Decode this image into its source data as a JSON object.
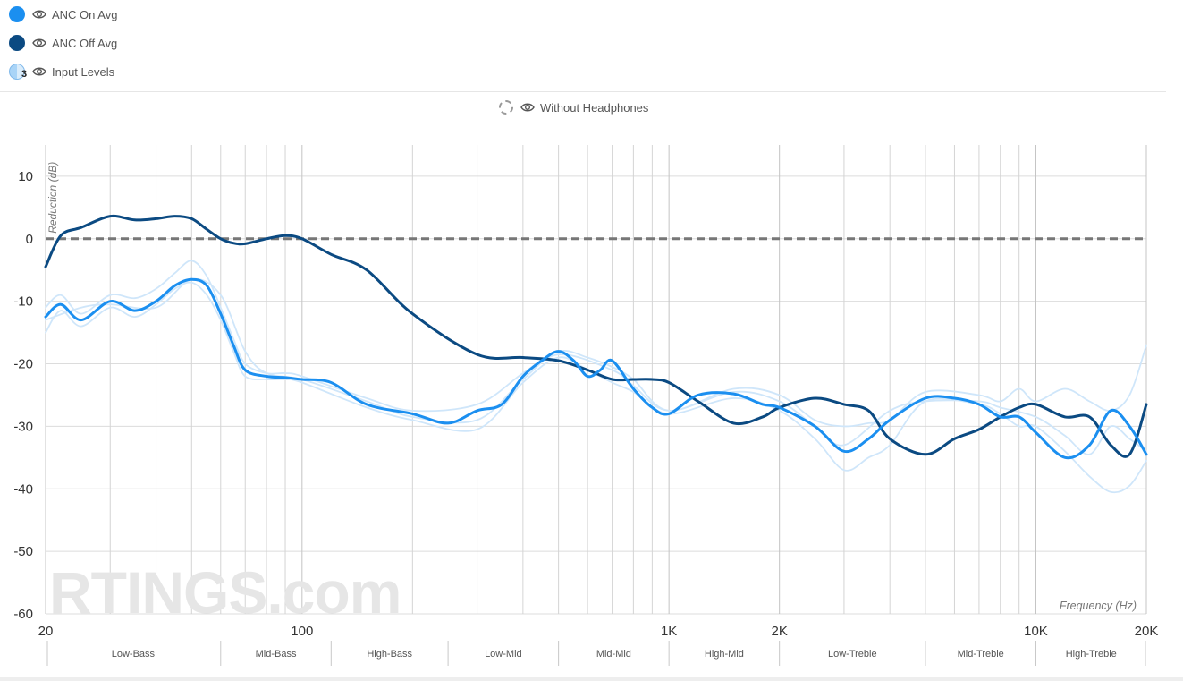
{
  "legend": {
    "items": [
      {
        "label": "ANC On Avg",
        "color": "#1b8ff0"
      },
      {
        "label": "ANC Off Avg",
        "color": "#0b4a82"
      },
      {
        "label": "Input Levels",
        "color": "#a9d4f7",
        "badge": "3"
      }
    ],
    "toggle_label": "Without Headphones"
  },
  "chart_data": {
    "type": "line",
    "title": "",
    "xlabel": "Frequency (Hz)",
    "ylabel": "Reduction (dB)",
    "x_scale": "log",
    "xlim": [
      20,
      20000
    ],
    "ylim": [
      -60,
      15
    ],
    "x_ticks": [
      {
        "value": 20,
        "label": "20"
      },
      {
        "value": 100,
        "label": "100"
      },
      {
        "value": 1000,
        "label": "1K"
      },
      {
        "value": 2000,
        "label": "2K"
      },
      {
        "value": 10000,
        "label": "10K"
      },
      {
        "value": 20000,
        "label": "20K"
      }
    ],
    "y_ticks": [
      10,
      0,
      -10,
      -20,
      -30,
      -40,
      -50,
      -60
    ],
    "minor_x_gridlines": [
      30,
      40,
      50,
      60,
      70,
      80,
      90,
      200,
      300,
      400,
      500,
      600,
      700,
      800,
      900,
      3000,
      4000,
      5000,
      6000,
      7000,
      8000,
      9000
    ],
    "reference_line": {
      "name": "Without Headphones",
      "y": 0
    },
    "bands": [
      {
        "label": "Low-Bass",
        "from": 20,
        "to": 60
      },
      {
        "label": "Mid-Bass",
        "from": 60,
        "to": 120
      },
      {
        "label": "High-Bass",
        "from": 120,
        "to": 250
      },
      {
        "label": "Low-Mid",
        "from": 250,
        "to": 500
      },
      {
        "label": "Mid-Mid",
        "from": 500,
        "to": 1000
      },
      {
        "label": "High-Mid",
        "from": 1000,
        "to": 2000
      },
      {
        "label": "Low-Treble",
        "from": 2000,
        "to": 5000
      },
      {
        "label": "Mid-Treble",
        "from": 5000,
        "to": 10000
      },
      {
        "label": "High-Treble",
        "from": 10000,
        "to": 20000
      }
    ],
    "watermark": "RTINGS.com",
    "series": [
      {
        "name": "ANC Off Avg",
        "color": "#0b4a82",
        "x": [
          20,
          22,
          25,
          30,
          35,
          40,
          45,
          50,
          55,
          60,
          65,
          70,
          80,
          90,
          100,
          120,
          150,
          200,
          300,
          400,
          500,
          600,
          700,
          800,
          900,
          1000,
          1200,
          1500,
          1800,
          2000,
          2500,
          3000,
          3500,
          4000,
          5000,
          6000,
          7000,
          8000,
          9000,
          10000,
          12000,
          14000,
          16000,
          18000,
          20000
        ],
        "y": [
          -4.5,
          0.5,
          1.8,
          3.6,
          3,
          3.2,
          3.6,
          3.2,
          1.5,
          0,
          -0.7,
          -0.8,
          0,
          0.5,
          0,
          -2.5,
          -5,
          -12,
          -18.5,
          -19,
          -19.5,
          -21,
          -22.5,
          -22.5,
          -22.5,
          -23,
          -26,
          -29.5,
          -28.5,
          -27,
          -25.5,
          -26.5,
          -27.5,
          -32,
          -34.5,
          -32,
          -30.5,
          -28.5,
          -27,
          -26.5,
          -28.5,
          -28.5,
          -33,
          -34.5,
          -26.5
        ]
      },
      {
        "name": "ANC On Avg",
        "color": "#1b8ff0",
        "x": [
          20,
          22,
          25,
          30,
          35,
          40,
          45,
          50,
          55,
          60,
          65,
          70,
          80,
          90,
          100,
          120,
          150,
          200,
          250,
          300,
          350,
          400,
          450,
          500,
          550,
          600,
          650,
          700,
          800,
          900,
          1000,
          1200,
          1500,
          1800,
          2000,
          2500,
          3000,
          3500,
          4000,
          5000,
          6000,
          7000,
          8000,
          9000,
          10000,
          12000,
          14000,
          16000,
          18000,
          20000
        ],
        "y": [
          -12.5,
          -10.5,
          -13,
          -10,
          -11.5,
          -10,
          -7.5,
          -6.5,
          -7.5,
          -12,
          -17,
          -21,
          -22,
          -22.2,
          -22.5,
          -23,
          -26.5,
          -28,
          -29.5,
          -27.5,
          -26.5,
          -22,
          -19.5,
          -18,
          -19.5,
          -22,
          -21,
          -19.5,
          -24,
          -27,
          -28,
          -25,
          -24.8,
          -26.5,
          -27,
          -30,
          -34,
          -32,
          -29,
          -25.5,
          -25.5,
          -26.5,
          -28.5,
          -28.5,
          -31,
          -35,
          -33,
          -27.5,
          -30,
          -34.5
        ]
      },
      {
        "name": "Input Level 1",
        "color": "#cfe6fa",
        "x": [
          20,
          22,
          25,
          30,
          35,
          40,
          45,
          50,
          55,
          60,
          65,
          70,
          80,
          90,
          100,
          150,
          200,
          300,
          400,
          500,
          600,
          700,
          800,
          1000,
          1500,
          2000,
          2500,
          3000,
          3500,
          4000,
          5000,
          7000,
          8000,
          9000,
          10000,
          12000,
          14000,
          16000,
          18000,
          20000
        ],
        "y": [
          -11,
          -9,
          -12,
          -9,
          -9.5,
          -8,
          -5.5,
          -3.5,
          -6,
          -11,
          -16,
          -20,
          -21.5,
          -21.5,
          -22,
          -25.5,
          -27.5,
          -26.5,
          -21.5,
          -18,
          -19,
          -20.5,
          -22.5,
          -27.5,
          -24,
          -25,
          -29,
          -30,
          -29.5,
          -29,
          -24.5,
          -25,
          -26,
          -24,
          -26,
          -24,
          -26,
          -27.5,
          -25,
          -17
        ]
      },
      {
        "name": "Input Level 2",
        "color": "#cfe6fa",
        "x": [
          20,
          22,
          25,
          30,
          35,
          40,
          45,
          50,
          55,
          60,
          65,
          70,
          80,
          90,
          100,
          150,
          200,
          300,
          400,
          500,
          600,
          700,
          800,
          1000,
          1500,
          2000,
          2500,
          3000,
          3500,
          4000,
          5000,
          7000,
          8000,
          9000,
          10000,
          12000,
          14000,
          16000,
          18000,
          20000
        ],
        "y": [
          -15,
          -11.5,
          -14,
          -11,
          -12.5,
          -10.5,
          -8,
          -7,
          -9,
          -13,
          -18,
          -22,
          -22.5,
          -22.5,
          -23,
          -27,
          -29,
          -30.5,
          -23,
          -19,
          -21,
          -23,
          -24.5,
          -28,
          -25.5,
          -27.5,
          -32,
          -37,
          -35,
          -33,
          -26,
          -26.5,
          -28,
          -30,
          -30,
          -34,
          -38,
          -40.5,
          -39.5,
          -35.5
        ]
      },
      {
        "name": "Input Level 3",
        "color": "#cfe6fa",
        "x": [
          20,
          25,
          30,
          40,
          50,
          60,
          70,
          80,
          100,
          150,
          200,
          300,
          400,
          500,
          700,
          800,
          1000,
          1500,
          2000,
          2500,
          3000,
          4000,
          5000,
          7000,
          8000,
          10000,
          12000,
          14000,
          16000,
          18000,
          20000
        ],
        "y": [
          -13,
          -11,
          -10.5,
          -11,
          -6.5,
          -9,
          -18,
          -21.5,
          -22.5,
          -26,
          -28.5,
          -29,
          -22.5,
          -18.5,
          -21,
          -23.5,
          -27.5,
          -24.5,
          -26,
          -30,
          -33,
          -27.5,
          -26,
          -26,
          -27,
          -28.5,
          -31.5,
          -34.5,
          -30,
          -32,
          -34
        ]
      }
    ]
  }
}
